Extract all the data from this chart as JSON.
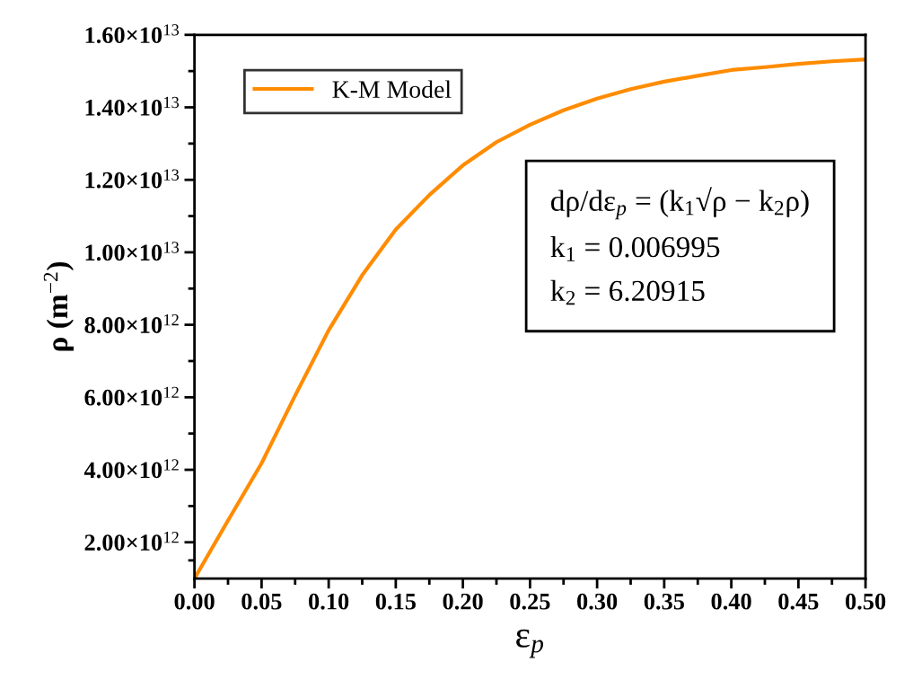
{
  "chart_data": {
    "type": "line",
    "xlabel": "ε$_{p}$",
    "ylabel": "ρ (m$^{−2}$)",
    "x": [
      0,
      0.025,
      0.05,
      0.075,
      0.1,
      0.125,
      0.15,
      0.175,
      0.2,
      0.225,
      0.25,
      0.275,
      0.3,
      0.325,
      0.35,
      0.375,
      0.4,
      0.425,
      0.45,
      0.475,
      0.5
    ],
    "series": [
      {
        "name": "K-M Model",
        "color": "#ff8c00",
        "values": [
          1000000000000.0,
          2600000000000.0,
          4180000000000.0,
          6050000000000.0,
          7850000000000.0,
          9370000000000.0,
          10630000000000.0,
          11580000000000.0,
          12400000000000.0,
          13040000000000.0,
          13520000000000.0,
          13920000000000.0,
          14240000000000.0,
          14500000000000.0,
          14710000000000.0,
          14870000000000.0,
          15030000000000.0,
          15110000000000.0,
          15200000000000.0,
          15270000000000.0,
          15320000000000.0
        ]
      }
    ],
    "xlim": [
      0,
      0.5
    ],
    "xticks": [
      {
        "value": 0,
        "label": "0.00"
      },
      0.05,
      {
        "value": 0.1,
        "label": "0.10"
      },
      0.15,
      {
        "value": 0.2,
        "label": "0.20"
      },
      0.25,
      {
        "value": 0.3,
        "label": "0.30"
      },
      0.35,
      {
        "value": 0.4,
        "label": "0.40"
      },
      0.45,
      {
        "value": 0.5,
        "label": "0.50"
      }
    ],
    "ylim": [
      1000000000000.0,
      16000000000000.0
    ],
    "yticks": [
      {
        "value": 2000000000000.0,
        "label": "2.00×10$^{12}$"
      },
      {
        "value": 4000000000000.0,
        "label": "4.00×10$^{12}$"
      },
      {
        "value": 6000000000000.0,
        "label": "6.00×10$^{12}$"
      },
      {
        "value": 8000000000000.0,
        "label": "8.00×10$^{12}$"
      },
      {
        "value": 10000000000000.0,
        "label": "1.00×10$^{13}$"
      },
      {
        "value": 12000000000000.0,
        "label": "1.20×10$^{13}$"
      },
      {
        "value": 14000000000000.0,
        "label": "1.40×10$^{13}$"
      },
      {
        "value": 16000000000000.0,
        "label": "1.60×10$^{13}$"
      }
    ],
    "annotations": [
      "dρ/dε$_{p}$ = (k$_{1}$√ρ − k$_{2}$ρ)",
      "k$_{1}$ = 0.006995",
      "k$_{2}$ = 6.20915"
    ],
    "legend": "top left",
    "grid": false,
    "marker": "none",
    "line_style": "solid"
  }
}
